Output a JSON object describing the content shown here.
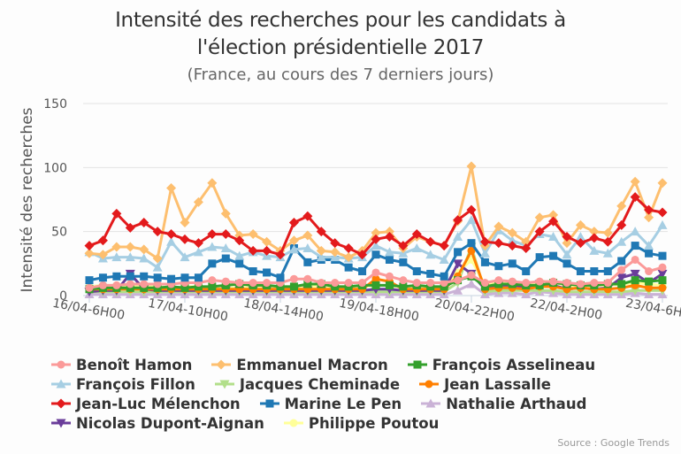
{
  "chart_data": {
    "type": "line",
    "title_line1": "Intensité des recherches pour les candidats à",
    "title_line2": "l'élection présidentielle 2017",
    "subtitle": "(France, au cours des 7 derniers jours)",
    "ylabel": "Intensité des recherches",
    "xlabel": "",
    "ylim": [
      0,
      150
    ],
    "yticks": [
      0,
      50,
      100,
      150
    ],
    "grid": true,
    "legend_position": "bottom",
    "source": "Source : Google Trends",
    "xtick_labels": [
      "16/04-6H00",
      "17/04-10H00",
      "18/04-14H00",
      "19/04-18H00",
      "20/04-22H00",
      "22/04-2H00",
      "23/04-6H00"
    ],
    "xtick_every": 7,
    "x_interval_hours": 4,
    "n_points": 43,
    "series": [
      {
        "name": "Benoît Hamon",
        "color": "#fb9a99",
        "marker": "circle",
        "values": [
          6,
          8,
          8,
          9,
          9,
          9,
          9,
          10,
          10,
          12,
          11,
          10,
          10,
          10,
          10,
          13,
          13,
          10,
          10,
          10,
          10,
          18,
          15,
          12,
          10,
          10,
          10,
          12,
          16,
          10,
          12,
          11,
          10,
          11,
          11,
          10,
          9,
          10,
          10,
          20,
          28,
          19,
          22
        ]
      },
      {
        "name": "Emmanuel Macron",
        "color": "#fdbf6f",
        "marker": "diamond",
        "values": [
          33,
          32,
          38,
          38,
          36,
          29,
          84,
          57,
          73,
          88,
          64,
          47,
          48,
          42,
          35,
          43,
          47,
          35,
          34,
          30,
          35,
          49,
          50,
          37,
          46,
          42,
          39,
          58,
          101,
          39,
          54,
          49,
          42,
          61,
          63,
          41,
          55,
          50,
          49,
          70,
          89,
          61,
          88
        ]
      },
      {
        "name": "François Asselineau",
        "color": "#33a02c",
        "marker": "square",
        "values": [
          5,
          6,
          6,
          6,
          6,
          6,
          7,
          6,
          7,
          7,
          8,
          9,
          8,
          8,
          7,
          7,
          9,
          9,
          7,
          7,
          8,
          8,
          8,
          7,
          8,
          7,
          7,
          12,
          15,
          7,
          9,
          9,
          8,
          8,
          10,
          9,
          8,
          8,
          9,
          9,
          12,
          11,
          12
        ]
      },
      {
        "name": "François Fillon",
        "color": "#a6cee3",
        "marker": "triangle",
        "values": [
          34,
          29,
          30,
          30,
          29,
          22,
          42,
          30,
          34,
          38,
          37,
          31,
          34,
          31,
          30,
          36,
          37,
          30,
          30,
          29,
          30,
          39,
          34,
          33,
          37,
          32,
          28,
          46,
          59,
          33,
          51,
          43,
          39,
          48,
          46,
          32,
          46,
          35,
          33,
          42,
          50,
          39,
          55
        ]
      },
      {
        "name": "Jacques Cheminade",
        "color": "#b2df8a",
        "marker": "triangle-down",
        "values": [
          3,
          3,
          3,
          3,
          3,
          3,
          3,
          3,
          3,
          3,
          3,
          3,
          3,
          3,
          3,
          3,
          3,
          3,
          3,
          3,
          3,
          3,
          3,
          3,
          3,
          3,
          3,
          10,
          38,
          3,
          4,
          4,
          4,
          4,
          4,
          3,
          3,
          3,
          3,
          3,
          4,
          4,
          4
        ]
      },
      {
        "name": "Jean Lassalle",
        "color": "#ff7f00",
        "marker": "circle",
        "values": [
          5,
          5,
          5,
          5,
          5,
          5,
          5,
          5,
          5,
          5,
          5,
          5,
          5,
          5,
          5,
          5,
          5,
          5,
          5,
          5,
          5,
          13,
          11,
          5,
          5,
          5,
          5,
          15,
          35,
          5,
          6,
          6,
          5,
          7,
          7,
          5,
          6,
          5,
          5,
          6,
          8,
          6,
          6
        ]
      },
      {
        "name": "Jean-Luc Mélenchon",
        "color": "#e31a1c",
        "marker": "diamond",
        "values": [
          39,
          43,
          64,
          53,
          57,
          50,
          48,
          44,
          41,
          48,
          48,
          43,
          35,
          35,
          32,
          57,
          62,
          50,
          41,
          37,
          32,
          44,
          46,
          39,
          48,
          42,
          39,
          59,
          67,
          42,
          41,
          39,
          37,
          50,
          58,
          46,
          41,
          45,
          42,
          55,
          77,
          67,
          65
        ]
      },
      {
        "name": "Marine Le Pen",
        "color": "#1f78b4",
        "marker": "square",
        "values": [
          12,
          14,
          15,
          15,
          15,
          14,
          13,
          14,
          14,
          25,
          29,
          25,
          19,
          18,
          14,
          37,
          26,
          28,
          28,
          22,
          19,
          32,
          28,
          26,
          19,
          17,
          15,
          34,
          41,
          26,
          23,
          25,
          19,
          30,
          31,
          25,
          19,
          19,
          19,
          27,
          39,
          33,
          31
        ]
      },
      {
        "name": "Nathalie Arthaud",
        "color": "#cab2d6",
        "marker": "triangle",
        "values": [
          1,
          1,
          1,
          1,
          1,
          1,
          1,
          1,
          1,
          1,
          1,
          1,
          1,
          1,
          1,
          1,
          1,
          1,
          1,
          1,
          1,
          1,
          1,
          1,
          1,
          1,
          1,
          4,
          9,
          1,
          2,
          2,
          1,
          3,
          2,
          1,
          1,
          1,
          1,
          1,
          2,
          1,
          1
        ]
      },
      {
        "name": "Nicolas Dupont-Aignan",
        "color": "#6a3d9a",
        "marker": "triangle-down",
        "values": [
          3,
          4,
          4,
          17,
          5,
          4,
          4,
          4,
          4,
          4,
          4,
          4,
          4,
          4,
          4,
          4,
          4,
          4,
          4,
          4,
          4,
          5,
          5,
          4,
          4,
          4,
          4,
          25,
          17,
          5,
          8,
          8,
          6,
          9,
          8,
          5,
          6,
          5,
          6,
          14,
          17,
          10,
          17
        ]
      },
      {
        "name": "Philippe Poutou",
        "color": "#ffff99",
        "marker": "circle",
        "values": [
          7,
          8,
          8,
          7,
          8,
          7,
          6,
          7,
          7,
          7,
          6,
          6,
          7,
          7,
          7,
          7,
          7,
          7,
          7,
          7,
          7,
          8,
          8,
          6,
          6,
          7,
          6,
          18,
          28,
          8,
          10,
          10,
          8,
          11,
          11,
          7,
          7,
          8,
          8,
          9,
          10,
          9,
          8
        ]
      }
    ]
  },
  "legend_rows": [
    [
      0,
      1,
      2
    ],
    [
      3,
      4,
      5
    ],
    [
      6,
      7,
      8
    ],
    [
      9,
      10
    ]
  ]
}
